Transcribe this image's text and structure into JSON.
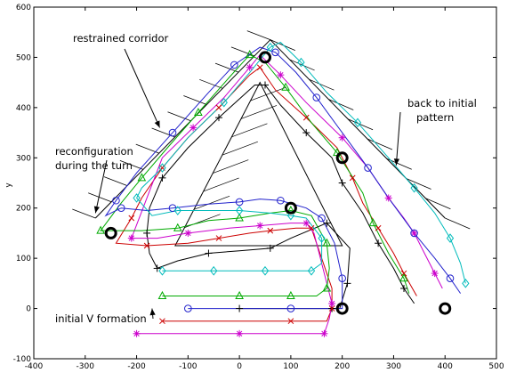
{
  "chart_data": {
    "type": "line",
    "title": "",
    "xlabel": "",
    "ylabel": "y",
    "xlim": [
      -400,
      500
    ],
    "ylim": [
      -100,
      600
    ],
    "xticks": [
      -400,
      -300,
      -200,
      -100,
      0,
      100,
      200,
      300,
      400,
      500
    ],
    "yticks": [
      -100,
      0,
      100,
      200,
      300,
      400,
      500,
      600
    ],
    "xtick_labels": [
      "-400",
      "-300",
      "-200",
      "-100",
      "0",
      "100",
      "200",
      "300",
      "400",
      "500"
    ],
    "ytick_labels": [
      "-100",
      "0",
      "100",
      "200",
      "300",
      "400",
      "500",
      "600"
    ],
    "grid": false,
    "corridor": {
      "outer_wall": [
        [
          -280,
          180
        ],
        [
          60,
          535
        ],
        [
          400,
          180
        ]
      ],
      "inner_wall": [
        [
          -125,
          125
        ],
        [
          40,
          450
        ],
        [
          200,
          125
        ]
      ],
      "inner_wall_base": [
        [
          -125,
          125
        ],
        [
          200,
          125
        ]
      ]
    },
    "annotations": [
      {
        "text": "restrained corridor",
        "arrow_to": [
          -155,
          360
        ]
      },
      {
        "text": "back to initial",
        "arrow_to": [
          305,
          285
        ]
      },
      {
        "text": "pattern",
        "arrow_to": null
      },
      {
        "text": "reconfiguration",
        "arrow_to": [
          -280,
          190
        ]
      },
      {
        "text": "during the turn",
        "arrow_to": null
      },
      {
        "text": "initial V formation",
        "arrow_to": [
          -170,
          0
        ]
      }
    ],
    "checkpoints": [
      [
        50,
        500
      ],
      [
        200,
        300
      ],
      [
        100,
        200
      ],
      [
        -250,
        150
      ],
      [
        200,
        0
      ],
      [
        400,
        0
      ]
    ],
    "series": [
      {
        "color": "#000000",
        "marker": "plus",
        "points": [
          [
            0,
            0
          ],
          [
            120,
            0
          ],
          [
            180,
            0
          ],
          [
            195,
            0
          ],
          [
            210,
            50
          ],
          [
            215,
            120
          ],
          [
            170,
            170
          ],
          [
            100,
            140
          ],
          [
            60,
            120
          ],
          [
            0,
            115
          ],
          [
            -60,
            110
          ],
          [
            -120,
            95
          ],
          [
            -160,
            80
          ],
          [
            -175,
            110
          ],
          [
            -180,
            150
          ],
          [
            -175,
            200
          ],
          [
            -150,
            260
          ],
          [
            -100,
            320
          ],
          [
            -40,
            380
          ],
          [
            30,
            445
          ],
          [
            50,
            445
          ],
          [
            80,
            405
          ],
          [
            130,
            350
          ],
          [
            180,
            300
          ],
          [
            200,
            250
          ],
          [
            240,
            190
          ],
          [
            270,
            130
          ],
          [
            300,
            80
          ],
          [
            320,
            40
          ],
          [
            340,
            10
          ]
        ]
      },
      {
        "color": "#cc0000",
        "marker": "x",
        "points": [
          [
            -150,
            -25
          ],
          [
            0,
            -25
          ],
          [
            100,
            -25
          ],
          [
            170,
            -25
          ],
          [
            180,
            0
          ],
          [
            180,
            40
          ],
          [
            140,
            160
          ],
          [
            110,
            160
          ],
          [
            60,
            155
          ],
          [
            20,
            150
          ],
          [
            -40,
            140
          ],
          [
            -100,
            130
          ],
          [
            -180,
            125
          ],
          [
            -240,
            130
          ],
          [
            -210,
            180
          ],
          [
            -190,
            220
          ],
          [
            -150,
            280
          ],
          [
            -100,
            340
          ],
          [
            -40,
            400
          ],
          [
            20,
            465
          ],
          [
            40,
            480
          ],
          [
            70,
            435
          ],
          [
            130,
            380
          ],
          [
            190,
            320
          ],
          [
            220,
            260
          ],
          [
            240,
            210
          ],
          [
            270,
            160
          ],
          [
            300,
            110
          ],
          [
            320,
            70
          ],
          [
            345,
            25
          ]
        ]
      },
      {
        "color": "#cc00cc",
        "marker": "star",
        "points": [
          [
            -200,
            -50
          ],
          [
            -100,
            -50
          ],
          [
            0,
            -50
          ],
          [
            100,
            -50
          ],
          [
            165,
            -50
          ],
          [
            175,
            -20
          ],
          [
            180,
            10
          ],
          [
            145,
            150
          ],
          [
            130,
            170
          ],
          [
            100,
            170
          ],
          [
            40,
            165
          ],
          [
            -20,
            160
          ],
          [
            -100,
            150
          ],
          [
            -160,
            140
          ],
          [
            -210,
            140
          ],
          [
            -150,
            300
          ],
          [
            -90,
            360
          ],
          [
            -30,
            420
          ],
          [
            20,
            480
          ],
          [
            40,
            505
          ],
          [
            80,
            465
          ],
          [
            130,
            410
          ],
          [
            200,
            340
          ],
          [
            250,
            280
          ],
          [
            290,
            220
          ],
          [
            320,
            180
          ],
          [
            340,
            150
          ],
          [
            360,
            110
          ],
          [
            380,
            70
          ],
          [
            395,
            40
          ]
        ]
      },
      {
        "color": "#00aa00",
        "marker": "triangle",
        "points": [
          [
            -150,
            25
          ],
          [
            -50,
            25
          ],
          [
            0,
            25
          ],
          [
            50,
            25
          ],
          [
            100,
            25
          ],
          [
            150,
            25
          ],
          [
            170,
            40
          ],
          [
            175,
            80
          ],
          [
            170,
            130
          ],
          [
            140,
            185
          ],
          [
            100,
            195
          ],
          [
            60,
            190
          ],
          [
            0,
            180
          ],
          [
            -60,
            175
          ],
          [
            -120,
            160
          ],
          [
            -190,
            155
          ],
          [
            -270,
            155
          ],
          [
            -230,
            210
          ],
          [
            -190,
            260
          ],
          [
            -140,
            320
          ],
          [
            -80,
            390
          ],
          [
            -20,
            460
          ],
          [
            20,
            505
          ],
          [
            50,
            490
          ],
          [
            90,
            440
          ],
          [
            140,
            370
          ],
          [
            190,
            310
          ],
          [
            240,
            230
          ],
          [
            260,
            170
          ],
          [
            290,
            110
          ],
          [
            320,
            60
          ],
          [
            330,
            30
          ]
        ]
      },
      {
        "color": "#2222cc",
        "marker": "circle",
        "points": [
          [
            -100,
            0
          ],
          [
            0,
            0
          ],
          [
            100,
            0
          ],
          [
            200,
            0
          ],
          [
            200,
            60
          ],
          [
            185,
            130
          ],
          [
            160,
            180
          ],
          [
            130,
            200
          ],
          [
            80,
            215
          ],
          [
            40,
            218
          ],
          [
            0,
            212
          ],
          [
            -60,
            208
          ],
          [
            -130,
            200
          ],
          [
            -180,
            195
          ],
          [
            -230,
            200
          ],
          [
            -260,
            185
          ],
          [
            -240,
            215
          ],
          [
            -200,
            270
          ],
          [
            -130,
            350
          ],
          [
            -60,
            430
          ],
          [
            -10,
            485
          ],
          [
            40,
            520
          ],
          [
            70,
            510
          ],
          [
            110,
            470
          ],
          [
            150,
            420
          ],
          [
            200,
            350
          ],
          [
            250,
            280
          ],
          [
            290,
            220
          ],
          [
            340,
            150
          ],
          [
            380,
            100
          ],
          [
            410,
            60
          ],
          [
            430,
            30
          ]
        ]
      },
      {
        "color": "#00bbbb",
        "marker": "diamond",
        "points": [
          [
            -150,
            75
          ],
          [
            -100,
            75
          ],
          [
            -50,
            75
          ],
          [
            0,
            75
          ],
          [
            50,
            75
          ],
          [
            100,
            75
          ],
          [
            140,
            75
          ],
          [
            160,
            90
          ],
          [
            160,
            140
          ],
          [
            130,
            180
          ],
          [
            100,
            185
          ],
          [
            60,
            190
          ],
          [
            0,
            195
          ],
          [
            -60,
            195
          ],
          [
            -120,
            195
          ],
          [
            -170,
            185
          ],
          [
            -200,
            220
          ],
          [
            -190,
            240
          ],
          [
            -150,
            280
          ],
          [
            -100,
            340
          ],
          [
            -30,
            410
          ],
          [
            20,
            470
          ],
          [
            60,
            520
          ],
          [
            80,
            530
          ],
          [
            120,
            490
          ],
          [
            170,
            430
          ],
          [
            230,
            370
          ],
          [
            290,
            300
          ],
          [
            340,
            240
          ],
          [
            380,
            190
          ],
          [
            410,
            140
          ],
          [
            430,
            90
          ],
          [
            440,
            50
          ]
        ]
      }
    ]
  }
}
